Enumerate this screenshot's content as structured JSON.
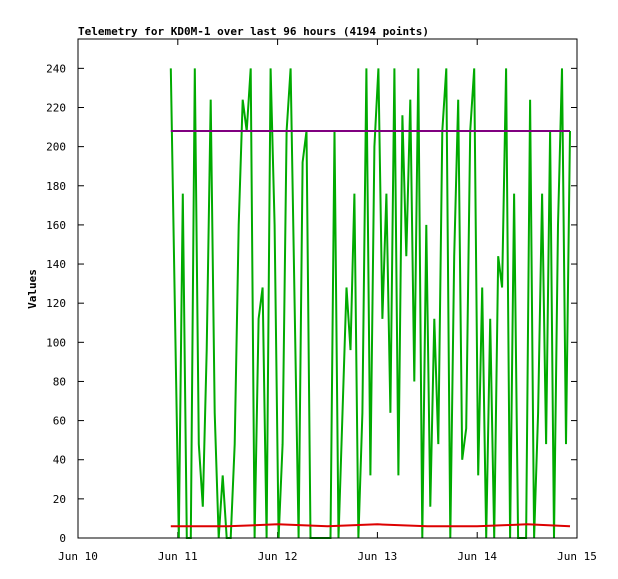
{
  "chart_data": {
    "type": "line",
    "title": "Telemetry for KD0M-1 over last 96 hours (4194 points)",
    "ylabel": "Values",
    "xlim": [
      0,
      5
    ],
    "xticks": [
      {
        "value": 0,
        "label": "Jun 10"
      },
      {
        "value": 1,
        "label": "Jun 11"
      },
      {
        "value": 2,
        "label": "Jun 12"
      },
      {
        "value": 3,
        "label": "Jun 13"
      },
      {
        "value": 4,
        "label": "Jun 14"
      },
      {
        "value": 5,
        "label": "Jun 15"
      }
    ],
    "ylim": [
      0,
      255
    ],
    "yticks": [
      0,
      20,
      40,
      60,
      80,
      100,
      120,
      140,
      160,
      180,
      200,
      220,
      240
    ],
    "series": [
      {
        "color": "#00aa00",
        "x": [
          0.93,
          0.97,
          1.01,
          1.05,
          1.09,
          1.13,
          1.17,
          1.21,
          1.25,
          1.29,
          1.33,
          1.37,
          1.41,
          1.45,
          1.49,
          1.53,
          1.57,
          1.61,
          1.65,
          1.69,
          1.73,
          1.77,
          1.81,
          1.85,
          1.89,
          1.93,
          1.97,
          2.01,
          2.05,
          2.09,
          2.13,
          2.17,
          2.21,
          2.25,
          2.29,
          2.33,
          2.37,
          2.41,
          2.45,
          2.49,
          2.53,
          2.57,
          2.61,
          2.65,
          2.69,
          2.73,
          2.77,
          2.81,
          2.85,
          2.89,
          2.93,
          2.97,
          3.01,
          3.05,
          3.09,
          3.13,
          3.17,
          3.21,
          3.25,
          3.29,
          3.33,
          3.37,
          3.41,
          3.45,
          3.49,
          3.53,
          3.57,
          3.61,
          3.65,
          3.69,
          3.73,
          3.77,
          3.81,
          3.85,
          3.89,
          3.93,
          3.97,
          4.01,
          4.05,
          4.09,
          4.13,
          4.17,
          4.21,
          4.25,
          4.29,
          4.33,
          4.37,
          4.41,
          4.45,
          4.49,
          4.53,
          4.57,
          4.61,
          4.65,
          4.69,
          4.73,
          4.77,
          4.81,
          4.85,
          4.89,
          4.93
        ],
        "values": [
          240,
          120,
          0,
          176,
          0,
          0,
          240,
          48,
          16,
          96,
          224,
          64,
          0,
          32,
          0,
          0,
          48,
          160,
          224,
          208,
          240,
          0,
          112,
          128,
          0,
          240,
          160,
          0,
          48,
          208,
          240,
          120,
          0,
          192,
          208,
          0,
          0,
          0,
          0,
          0,
          0,
          208,
          0,
          64,
          128,
          96,
          176,
          0,
          64,
          240,
          32,
          200,
          240,
          112,
          176,
          64,
          240,
          32,
          216,
          144,
          224,
          80,
          240,
          0,
          160,
          16,
          112,
          48,
          208,
          240,
          0,
          144,
          224,
          40,
          56,
          208,
          240,
          32,
          128,
          0,
          112,
          0,
          144,
          128,
          240,
          0,
          176,
          0,
          0,
          0,
          224,
          0,
          64,
          176,
          48,
          208,
          0,
          160,
          240,
          48,
          208
        ]
      },
      {
        "color": "#dd0000",
        "x": [
          0.93,
          1.5,
          2.0,
          2.5,
          3.0,
          3.5,
          4.0,
          4.5,
          4.93
        ],
        "values": [
          6,
          6,
          7,
          6,
          7,
          6,
          6,
          7,
          6
        ]
      },
      {
        "color": "#800080",
        "x": [
          0.93,
          4.93
        ],
        "values": [
          208,
          208
        ]
      }
    ]
  }
}
